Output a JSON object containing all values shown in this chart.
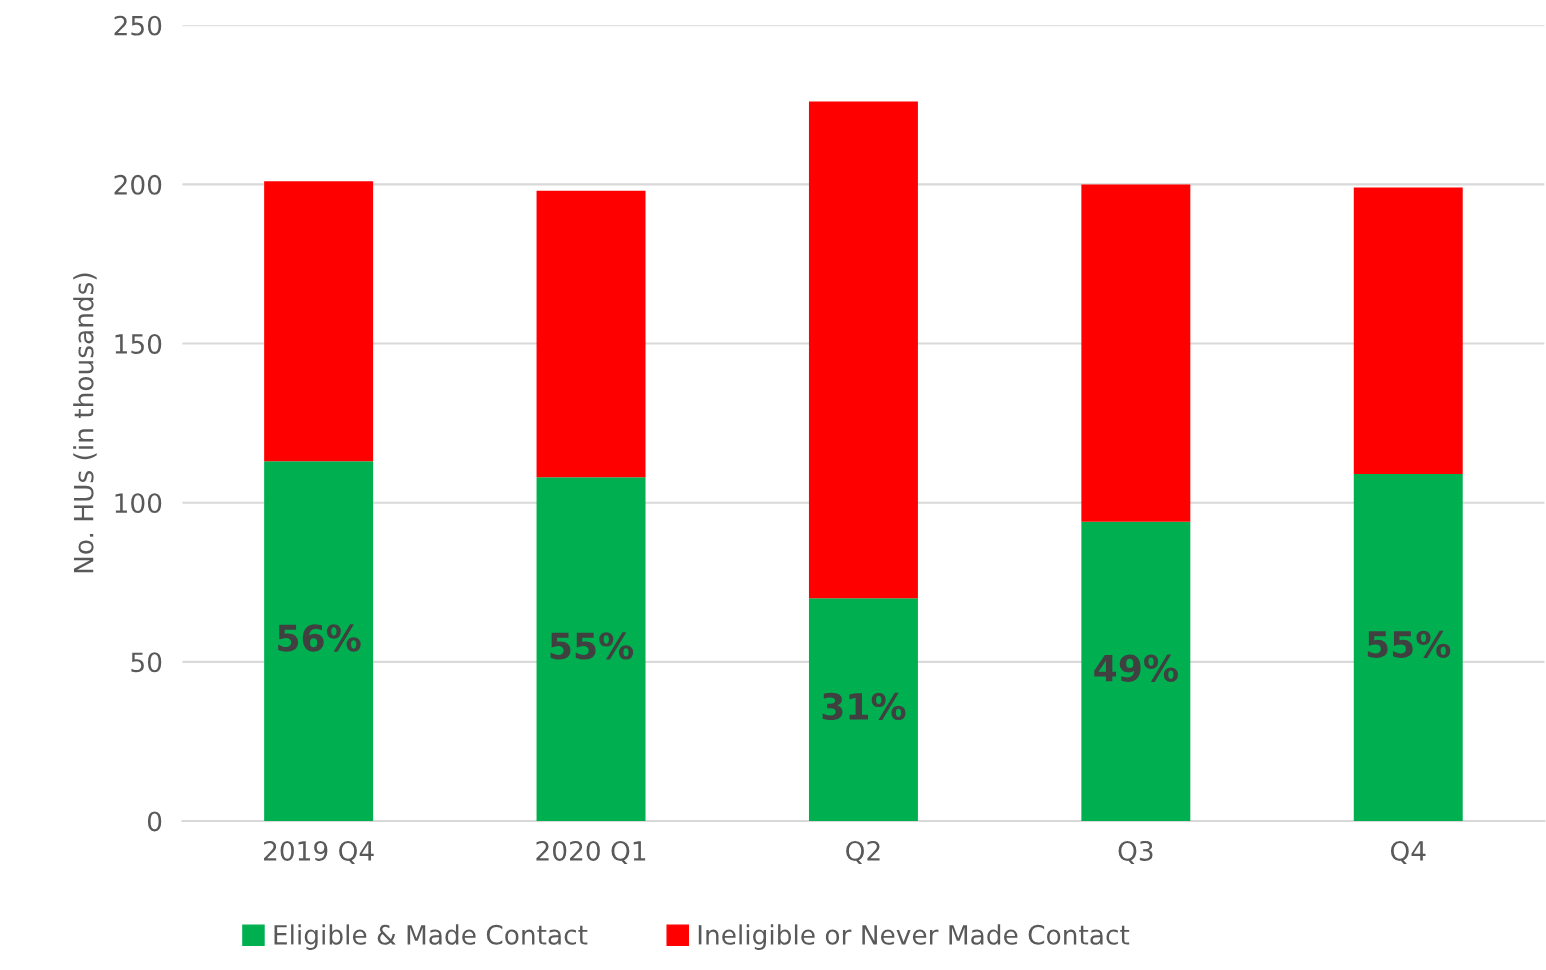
{
  "chart_data": {
    "type": "bar",
    "stacked": true,
    "ylabel": "No. HUs (in thousands)",
    "categories": [
      "2019 Q4",
      "2020 Q1",
      "Q2",
      "Q3",
      "Q4"
    ],
    "series": [
      {
        "name": "Eligible & Made Contact",
        "color": "#00b050",
        "values": [
          113,
          108,
          70,
          94,
          109
        ]
      },
      {
        "name": "Ineligible or Never Made Contact",
        "color": "#ff0000",
        "values": [
          88,
          90,
          156,
          106,
          90
        ]
      }
    ],
    "annotations": [
      "56%",
      "55%",
      "31%",
      "49%",
      "55%"
    ],
    "ylim": [
      0,
      250
    ],
    "yticks": [
      0,
      50,
      100,
      150,
      200,
      250
    ],
    "grid": "y",
    "legend": "bottom"
  }
}
